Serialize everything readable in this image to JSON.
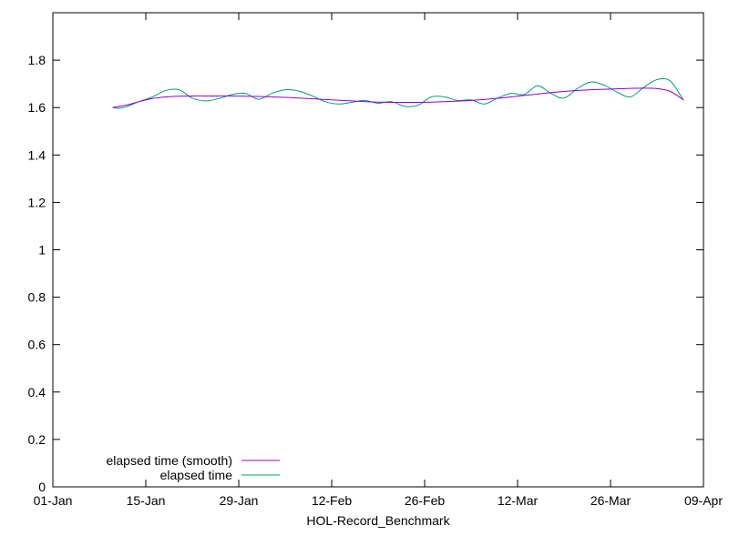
{
  "chart_data": {
    "type": "line",
    "xlabel": "HOL-Record_Benchmark",
    "ylabel": "",
    "x_ticks": [
      "01-Jan",
      "15-Jan",
      "29-Jan",
      "12-Feb",
      "26-Feb",
      "12-Mar",
      "26-Mar",
      "09-Apr"
    ],
    "y_ticks": [
      "0",
      "0.2",
      "0.4",
      "0.6",
      "0.8",
      "1",
      "1.2",
      "1.4",
      "1.6",
      "1.8"
    ],
    "xlim": [
      "01-Jan",
      "09-Apr"
    ],
    "ylim": [
      0,
      2.0
    ],
    "grid": false,
    "legend_position": "bottom-left",
    "series": [
      {
        "name": "elapsed time (smooth)",
        "color": "#9400d3",
        "x": [
          "10-Jan",
          "12-Jan",
          "14-Jan",
          "16-Jan",
          "18-Jan",
          "20-Jan",
          "22-Jan",
          "24-Jan",
          "26-Jan",
          "28-Jan",
          "30-Jan",
          "01-Feb",
          "03-Feb",
          "05-Feb",
          "07-Feb",
          "09-Feb",
          "11-Feb",
          "13-Feb",
          "15-Feb",
          "17-Feb",
          "19-Feb",
          "21-Feb",
          "23-Feb",
          "25-Feb",
          "27-Feb",
          "01-Mar",
          "03-Mar",
          "05-Mar",
          "07-Mar",
          "09-Mar",
          "11-Mar",
          "13-Mar",
          "15-Mar",
          "17-Mar",
          "19-Mar",
          "21-Mar",
          "23-Mar",
          "25-Mar",
          "27-Mar",
          "29-Mar",
          "31-Mar",
          "02-Apr",
          "04-Apr",
          "06-Apr"
        ],
        "values": [
          1.6,
          1.61,
          1.625,
          1.638,
          1.645,
          1.648,
          1.649,
          1.649,
          1.649,
          1.649,
          1.648,
          1.647,
          1.645,
          1.643,
          1.64,
          1.637,
          1.634,
          1.631,
          1.628,
          1.625,
          1.623,
          1.622,
          1.622,
          1.622,
          1.623,
          1.625,
          1.627,
          1.63,
          1.634,
          1.639,
          1.645,
          1.651,
          1.657,
          1.663,
          1.668,
          1.672,
          1.675,
          1.677,
          1.679,
          1.681,
          1.682,
          1.68,
          1.668,
          1.632
        ]
      },
      {
        "name": "elapsed time",
        "color": "#009e73",
        "x": [
          "10-Jan",
          "11-Jan",
          "12-Jan",
          "14-Jan",
          "16-Jan",
          "18-Jan",
          "20-Jan",
          "22-Jan",
          "24-Jan",
          "26-Jan",
          "28-Jan",
          "30-Jan",
          "01-Feb",
          "03-Feb",
          "05-Feb",
          "07-Feb",
          "09-Feb",
          "11-Feb",
          "13-Feb",
          "15-Feb",
          "17-Feb",
          "19-Feb",
          "21-Feb",
          "23-Feb",
          "25-Feb",
          "27-Feb",
          "01-Mar",
          "03-Mar",
          "05-Mar",
          "07-Mar",
          "09-Mar",
          "11-Mar",
          "13-Mar",
          "15-Mar",
          "17-Mar",
          "19-Mar",
          "21-Mar",
          "23-Mar",
          "25-Mar",
          "27-Mar",
          "29-Mar",
          "31-Mar",
          "02-Apr",
          "04-Apr",
          "06-Apr"
        ],
        "values": [
          1.6,
          1.597,
          1.603,
          1.625,
          1.645,
          1.672,
          1.675,
          1.64,
          1.628,
          1.638,
          1.655,
          1.66,
          1.635,
          1.66,
          1.675,
          1.67,
          1.65,
          1.625,
          1.615,
          1.622,
          1.63,
          1.618,
          1.625,
          1.605,
          1.61,
          1.645,
          1.645,
          1.63,
          1.632,
          1.615,
          1.64,
          1.66,
          1.655,
          1.692,
          1.66,
          1.64,
          1.68,
          1.708,
          1.695,
          1.665,
          1.645,
          1.685,
          1.718,
          1.712,
          1.63
        ]
      }
    ]
  }
}
